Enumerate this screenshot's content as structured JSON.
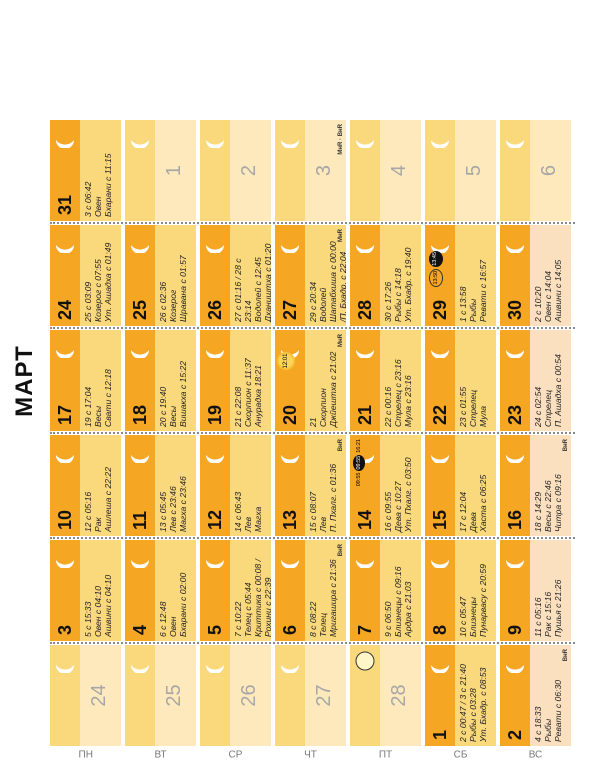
{
  "calendar": {
    "title": "МАРТ",
    "weekdays": [
      "ПН",
      "ВТ",
      "СР",
      "ЧТ",
      "ПТ",
      "СБ",
      "ВС"
    ],
    "colors": {
      "accent": "#f5a623",
      "warm": "#fad87c",
      "pale": "#fde9bc",
      "sun": "#fbd45a",
      "weekend": "#fbe0c0"
    },
    "cells": [
      {
        "num": "24",
        "faded": true,
        "bg": "pale"
      },
      {
        "num": "25",
        "faded": true,
        "bg": "pale"
      },
      {
        "num": "26",
        "faded": true,
        "bg": "pale"
      },
      {
        "num": "27",
        "faded": true,
        "bg": "pale"
      },
      {
        "num": "28",
        "faded": true,
        "bg": "pale",
        "moon": "full"
      },
      {
        "num": "1",
        "bg": "warm",
        "lines": [
          "2 с 00:47 / 3 с 21:40",
          "Рыбы с 03:28",
          "Ут. Бхадр. с 08:53"
        ]
      },
      {
        "num": "2",
        "bg": "weekend",
        "lines": [
          "4 с 18:33",
          "Рыбы",
          "Ревати с 06:30"
        ],
        "badge": "ВнR"
      },
      {
        "num": "3",
        "bg": "warm",
        "lines": [
          "5 с 15:33",
          "Овен с 04:10",
          "Ашвини с 04:10"
        ]
      },
      {
        "num": "4",
        "bg": "warm",
        "lines": [
          "6 с 12:48",
          "Овен",
          "Бхарани с 02:00"
        ]
      },
      {
        "num": "5",
        "bg": "warm",
        "lines": [
          "7 с 10:22",
          "Телец с 05:44",
          "Криттика с 00:08 /",
          "Рохини с 22:39"
        ]
      },
      {
        "num": "6",
        "bg": "warm",
        "lines": [
          "8 с 08:22",
          "Телец",
          "Мригашира с 21:36"
        ],
        "badge": "ВнR"
      },
      {
        "num": "7",
        "bg": "warm",
        "lines": [
          "9 с 06:50",
          "Близнецы с 09:16",
          "Ардра с 21:03"
        ]
      },
      {
        "num": "8",
        "bg": "warm",
        "lines": [
          "10 с 05:47",
          "Близнецы",
          "Пунарвасу с 20:59"
        ]
      },
      {
        "num": "9",
        "bg": "weekend",
        "lines": [
          "11 с 05:16",
          "Рак с 15:16",
          "Пушья с 21:26"
        ]
      },
      {
        "num": "10",
        "bg": "warm",
        "lines": [
          "12 с 05:16",
          "Рак",
          "Ашлеша с 22:22"
        ]
      },
      {
        "num": "11",
        "bg": "warm",
        "lines": [
          "13 с 05:45",
          "Лев с 23:46",
          "Магха с 23:46"
        ]
      },
      {
        "num": "12",
        "bg": "warm",
        "lines": [
          "14 с 06:43",
          "Лев",
          "Магха"
        ]
      },
      {
        "num": "13",
        "bg": "warm",
        "lines": [
          "15 с 08:07",
          "Лев",
          "П. Пхалг. с 01:36"
        ],
        "badge": "ВнR"
      },
      {
        "num": "14",
        "bg": "warm",
        "eclipse": [
          "09:55",
          "09:55",
          "16:21"
        ],
        "lines": [
          "16 с 09:55",
          "Дева с 10:27",
          "Ут. Пхалг. с 03:50"
        ]
      },
      {
        "num": "15",
        "bg": "warm",
        "lines": [
          "17 с 12:04",
          "Дева",
          "Хаста с 06:25"
        ]
      },
      {
        "num": "16",
        "bg": "weekend",
        "lines": [
          "18 с 14:29",
          "Весы с 22:46",
          "Читра с 09:16"
        ],
        "badge": "ВнR"
      },
      {
        "num": "17",
        "bg": "warm",
        "lines": [
          "19 с 17:04",
          "Весы",
          "Свати с 12:18"
        ]
      },
      {
        "num": "18",
        "bg": "warm",
        "lines": [
          "20 с 19:40",
          "Весы",
          "Вишакха с 15:22"
        ]
      },
      {
        "num": "19",
        "bg": "warm",
        "lines": [
          "21 с 22:08",
          "Скорпион с 11:37",
          "Анурадха 18:21"
        ]
      },
      {
        "num": "20",
        "bg": "warm",
        "sun": "12:01",
        "lines": [
          "21",
          "Скорпион",
          "Джйештха с 21:02"
        ],
        "badge": "МнR"
      },
      {
        "num": "21",
        "bg": "warm",
        "lines": [
          "22 с 00:16",
          "Стрелец с 23:16",
          "Мула с 23:16"
        ]
      },
      {
        "num": "22",
        "bg": "warm",
        "lines": [
          "23 с 01:55",
          "Стрелец",
          "Мула"
        ]
      },
      {
        "num": "23",
        "bg": "weekend",
        "lines": [
          "24 с 02:54",
          "Стрелец",
          "П. Ашадха с 00:54"
        ]
      },
      {
        "num": "24",
        "bg": "warm",
        "lines": [
          "25 с 03:09",
          "Козерог с 07:55",
          "Ут. Ашадха с 01:49"
        ]
      },
      {
        "num": "25",
        "bg": "warm",
        "lines": [
          "26 с 02:36",
          "Козерог",
          "Шравана с 01:57"
        ]
      },
      {
        "num": "26",
        "bg": "warm",
        "lines": [
          "27 с 01:16 / 28 с",
          "23:14",
          "Водолей с 12:45",
          "Дхаништха с 01:20"
        ]
      },
      {
        "num": "27",
        "bg": "warm",
        "lines": [
          "29 с 20:34",
          "Водолей",
          "Шатабхиша с 00:00",
          "/П. Бхадр. с 22:04"
        ],
        "badge": "МнR"
      },
      {
        "num": "28",
        "bg": "warm",
        "lines": [
          "30 с 17:26",
          "Рыбы с 14:18",
          "Ут. Бхадр. с 19:40"
        ]
      },
      {
        "num": "29",
        "bg": "warm",
        "eclipse2": [
          "13:50",
          "13:45"
        ],
        "lines": [
          "1 с 13:58",
          "Рыбы",
          "Ревати с 16:57"
        ]
      },
      {
        "num": "30",
        "bg": "weekend",
        "lines": [
          "2 с 10:20",
          "Овен с 14:04",
          "Ашвини с 14:05"
        ]
      },
      {
        "num": "31",
        "bg": "warm",
        "lines": [
          "3 с 06:42",
          "Овен",
          "Бхарани с 11:15"
        ]
      },
      {
        "num": "1",
        "faded": true,
        "bg": "pale"
      },
      {
        "num": "2",
        "faded": true,
        "bg": "pale"
      },
      {
        "num": "3",
        "faded": true,
        "bg": "pale",
        "badge2": "МнR · ВнR"
      },
      {
        "num": "4",
        "faded": true,
        "bg": "pale"
      },
      {
        "num": "5",
        "faded": true,
        "bg": "pale"
      },
      {
        "num": "6",
        "faded": true,
        "bg": "pale"
      }
    ]
  }
}
